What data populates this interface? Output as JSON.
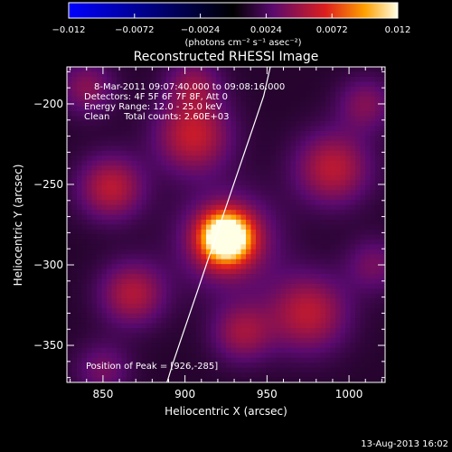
{
  "colorbar": {
    "ticks": [
      "−0.012",
      "−0.0072",
      "−0.0024",
      "0.0024",
      "0.0072",
      "0.012"
    ],
    "units_label": "(photons cm⁻² s⁻¹ asec⁻²)"
  },
  "chart_data": {
    "type": "heatmap",
    "title": "Reconstructed RHESSI Image",
    "xlabel": "Heliocentric X (arcsec)",
    "ylabel": "Heliocentric Y (arcsec)",
    "xlim": [
      828,
      1022
    ],
    "ylim": [
      -373,
      -177
    ],
    "x_ticks": [
      "850",
      "900",
      "950",
      "1000"
    ],
    "y_ticks": [
      "−200",
      "−250",
      "−300",
      "−350"
    ],
    "x_tick_values": [
      850,
      900,
      950,
      1000
    ],
    "y_tick_values": [
      -200,
      -250,
      -300,
      -350
    ],
    "color_range": [
      -0.012,
      0.012
    ],
    "colormap": [
      "#0000ff",
      "#000000",
      "#5a0a6e",
      "#dc1e1e",
      "#ffa000",
      "#ffffe6"
    ],
    "info_lines": [
      "8-Mar-2011 09:07:40.000 to 09:08:16.000",
      "Detectors: 4F 5F 6F 7F 8F, Att 0",
      "Energy Range: 12.0 - 25.0 keV",
      "Clean     Total counts: 2.60E+03"
    ],
    "peak_label": "Position of Peak = [926,-285]",
    "peak": [
      926,
      -285
    ],
    "limb_arc": [
      [
        889,
        -373
      ],
      [
        893,
        -360
      ],
      [
        898,
        -345
      ],
      [
        903,
        -330
      ],
      [
        908,
        -315
      ],
      [
        913,
        -300
      ],
      [
        918,
        -285
      ],
      [
        923,
        -270
      ],
      [
        928,
        -255
      ],
      [
        933,
        -240
      ],
      [
        938,
        -225
      ],
      [
        943,
        -210
      ],
      [
        948,
        -195
      ],
      [
        952,
        -177
      ]
    ],
    "components": [
      {
        "x": 925,
        "y": -283,
        "amp": 0.0125,
        "sigma": 10
      },
      {
        "x": 926,
        "y": -285,
        "amp": 0.0045,
        "sigma": 20
      },
      {
        "x": 855,
        "y": -252,
        "amp": 0.0045,
        "sigma": 14
      },
      {
        "x": 905,
        "y": -220,
        "amp": 0.0048,
        "sigma": 16
      },
      {
        "x": 990,
        "y": -240,
        "amp": 0.0045,
        "sigma": 16
      },
      {
        "x": 975,
        "y": -330,
        "amp": 0.0045,
        "sigma": 17
      },
      {
        "x": 868,
        "y": -318,
        "amp": 0.0042,
        "sigma": 14
      },
      {
        "x": 935,
        "y": -342,
        "amp": 0.0036,
        "sigma": 13
      },
      {
        "x": 905,
        "y": -188,
        "amp": 0.003,
        "sigma": 12
      },
      {
        "x": 1010,
        "y": -200,
        "amp": 0.0028,
        "sigma": 12
      },
      {
        "x": 1015,
        "y": -300,
        "amp": 0.0024,
        "sigma": 12
      },
      {
        "x": 840,
        "y": -190,
        "amp": 0.003,
        "sigma": 12
      },
      {
        "x": 850,
        "y": -365,
        "amp": 0.0024,
        "sigma": 12
      }
    ],
    "background_level": 0.0012
  },
  "footer": {
    "timestamp": "13-Aug-2013 16:02"
  }
}
